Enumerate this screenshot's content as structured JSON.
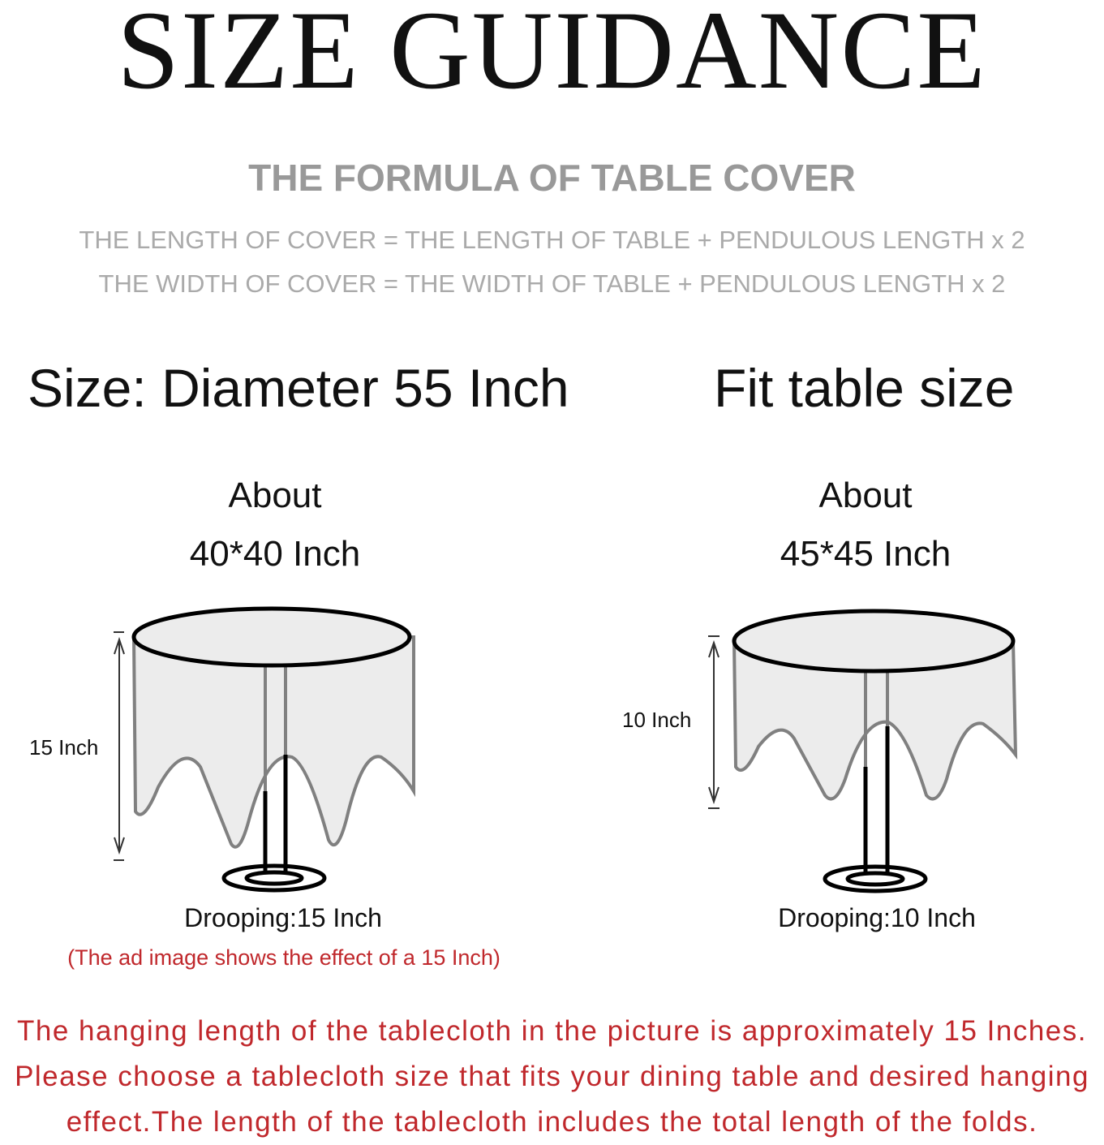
{
  "title": "SIZE GUIDANCE",
  "formula": {
    "heading": "THE FORMULA OF TABLE COVER",
    "lines": [
      "THE LENGTH OF COVER = THE LENGTH OF TABLE + PENDULOUS LENGTH x 2",
      "THE WIDTH OF COVER = THE WIDTH OF TABLE + PENDULOUS LENGTH  x 2"
    ]
  },
  "left": {
    "heading": "Size: Diameter 55 Inch",
    "about": "About",
    "table_size": "40*40 Inch",
    "drop_label": "15 Inch",
    "drooping": "Drooping:15 Inch",
    "note": "(The ad image shows the effect of a 15 Inch)"
  },
  "right": {
    "heading": "Fit table size",
    "about": "About",
    "table_size": "45*45 Inch",
    "drop_label": "10 Inch",
    "drooping": "Drooping:10 Inch"
  },
  "footer": [
    "The hanging length of the tablecloth in the picture is approximately 15 Inches.",
    "Please choose a tablecloth size that fits your dining table and desired hanging",
    "effect.The length of the tablecloth includes the total length of the folds."
  ],
  "colors": {
    "accent_red": "#c0282c",
    "formula_gray": "#999999"
  }
}
